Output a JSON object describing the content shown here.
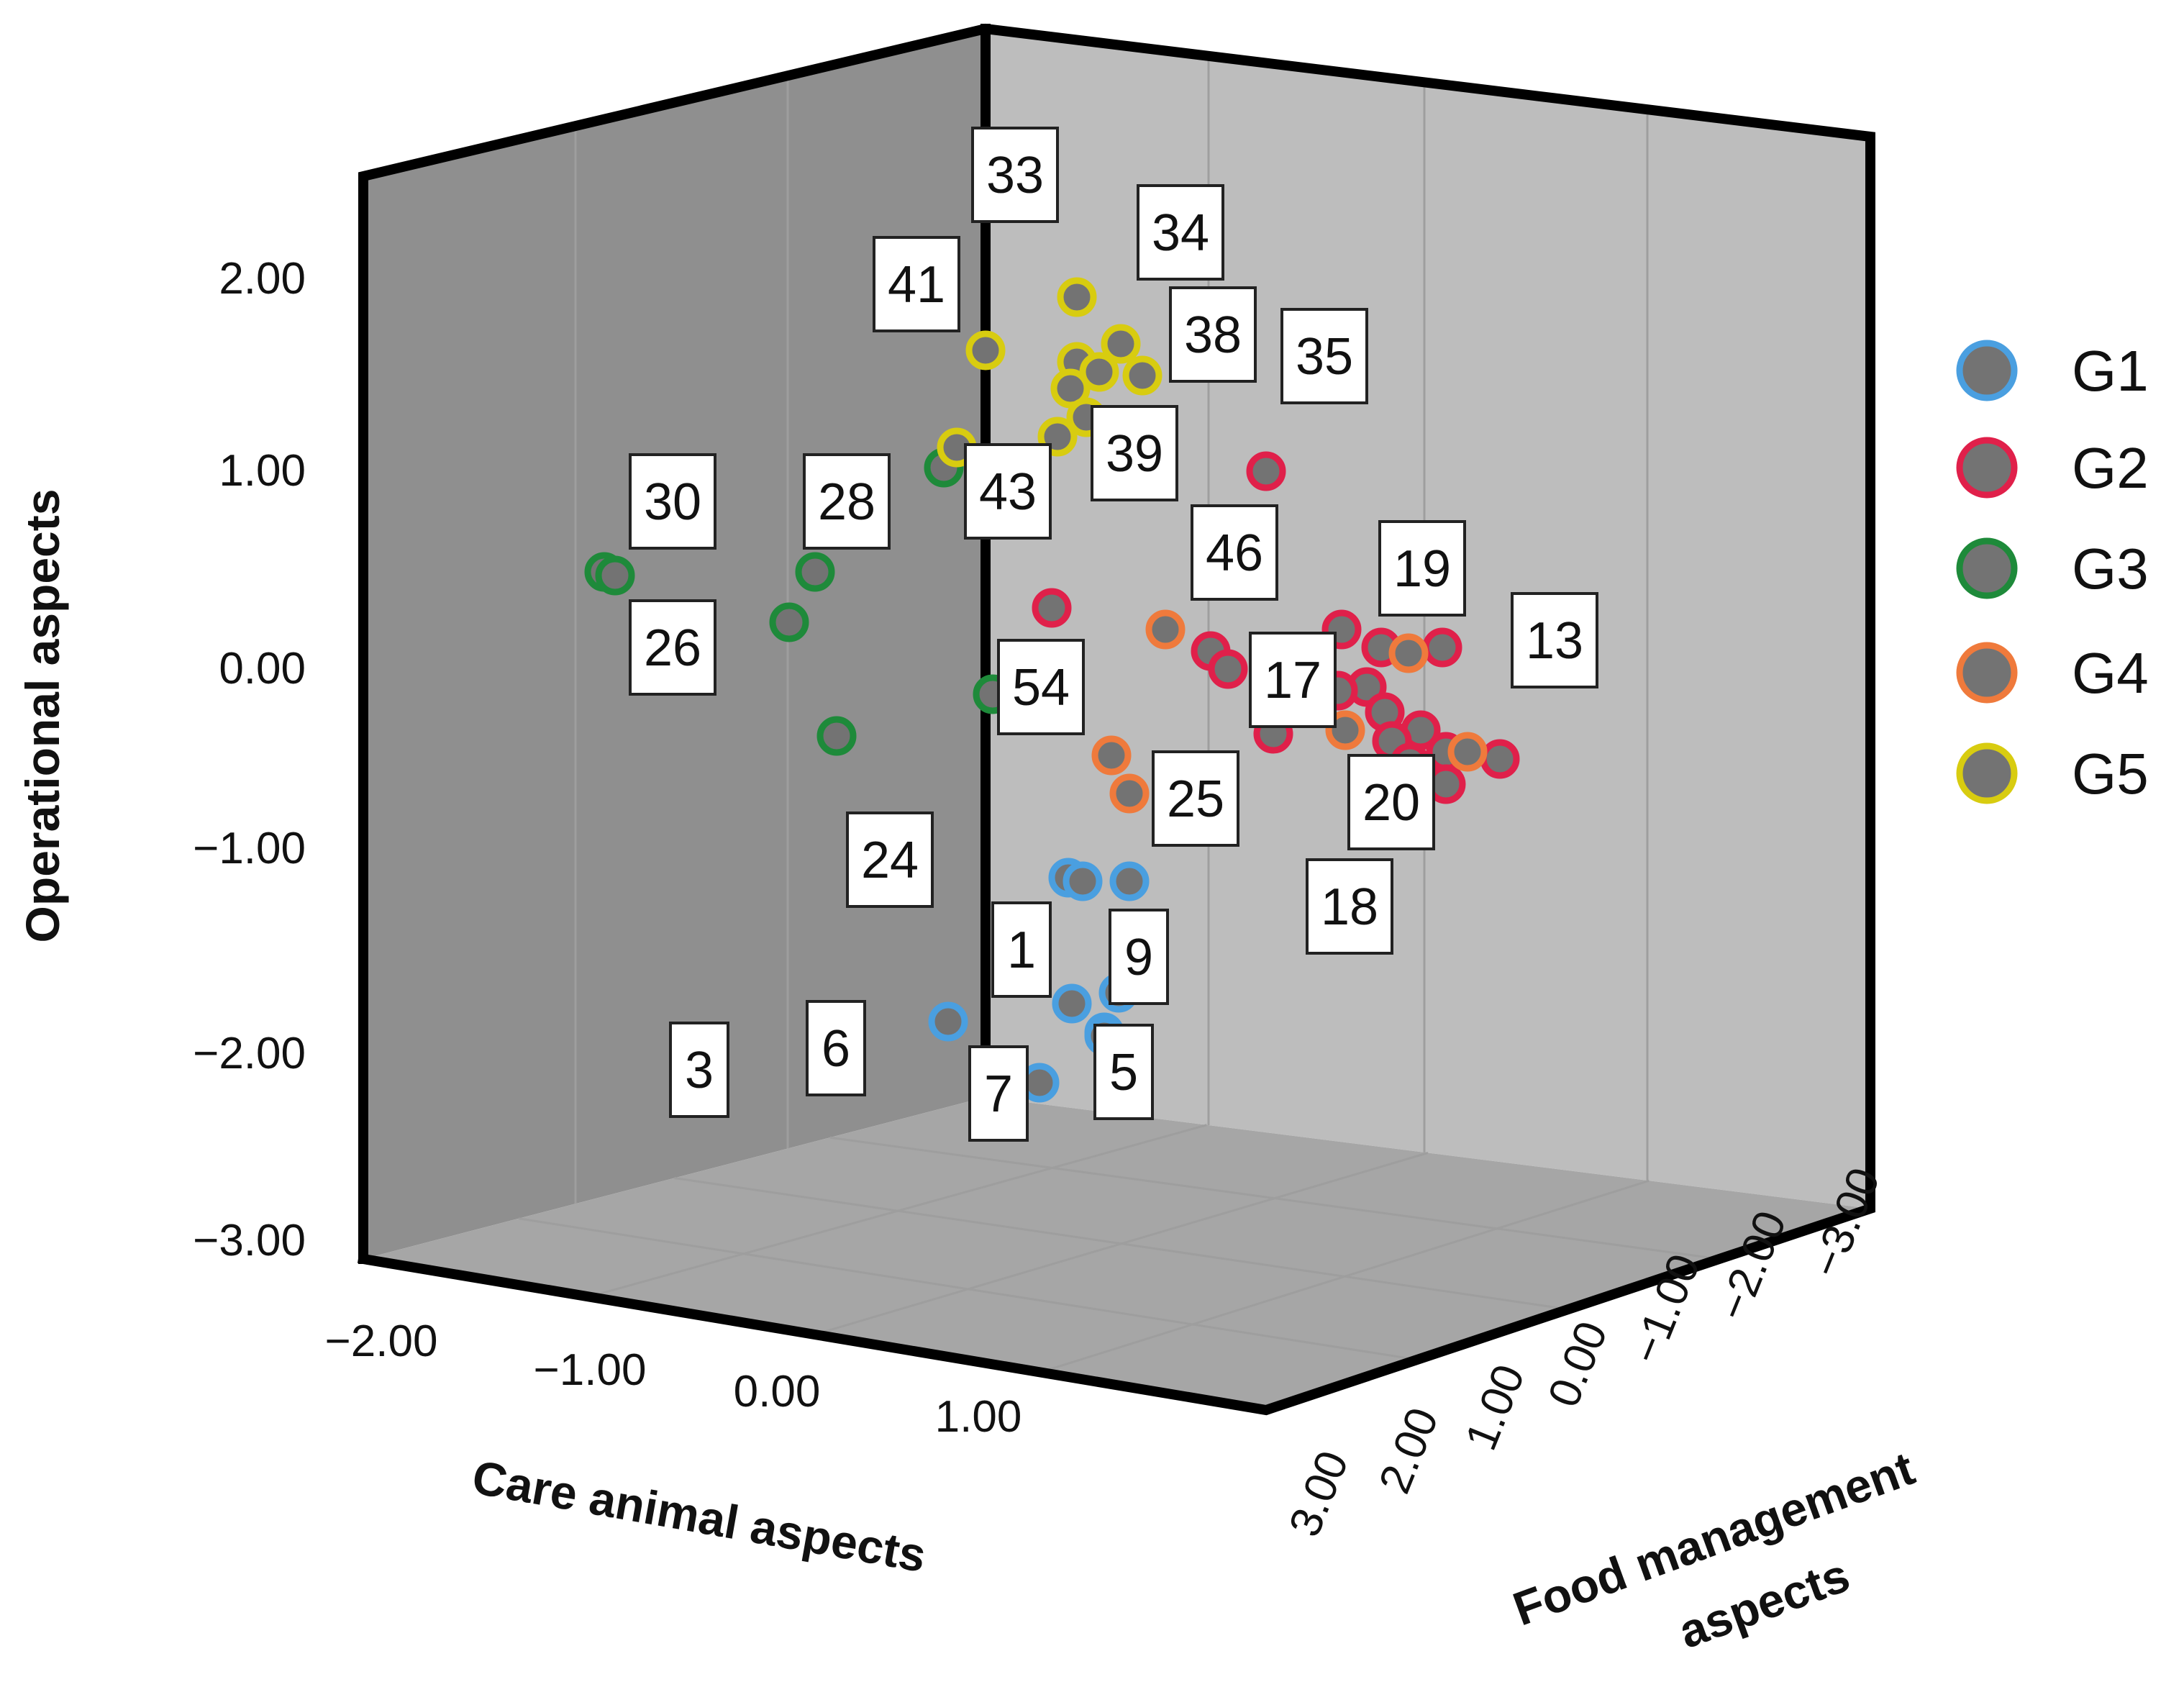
{
  "chart_data": {
    "type": "scatter",
    "title": "",
    "xlabel": "Care animal aspects",
    "ylabel": "Operational aspects",
    "zlabel": "Food management aspects",
    "y_ticks": [
      "2.00",
      "1.00",
      "0.00",
      "−1.00",
      "−2.00",
      "−3.00"
    ],
    "x_ticks": [
      "−2.00",
      "−1.00",
      "0.00",
      "1.00"
    ],
    "z_ticks": [
      "3.00",
      "2.00",
      "1.00",
      "0.00",
      "−1.00",
      "−2.00",
      "−3.00"
    ],
    "grid": true,
    "legend_position": "right",
    "series": [
      {
        "name": "G1",
        "color": "#4a9fe0"
      },
      {
        "name": "G2",
        "color": "#e0204a"
      },
      {
        "name": "G3",
        "color": "#1e8a3a"
      },
      {
        "name": "G4",
        "color": "#ef7a3c"
      },
      {
        "name": "G5",
        "color": "#d8cc10"
      }
    ],
    "point_labels": [
      "33",
      "34",
      "41",
      "38",
      "35",
      "39",
      "43",
      "30",
      "28",
      "46",
      "19",
      "26",
      "13",
      "54",
      "17",
      "25",
      "20",
      "24",
      "18",
      "1",
      "9",
      "3",
      "6",
      "5",
      "7"
    ],
    "points": [
      {
        "group": "G1",
        "op": -1.05
      },
      {
        "group": "G1",
        "op": -1.08
      },
      {
        "group": "G1",
        "op": -1.08
      },
      {
        "group": "G1",
        "op": -1.74
      },
      {
        "group": "G1",
        "op": -1.68
      },
      {
        "group": "G1",
        "op": -1.7
      },
      {
        "group": "G1",
        "op": -1.85
      },
      {
        "group": "G1",
        "op": -1.88
      },
      {
        "group": "G1",
        "op": -2.1
      },
      {
        "group": "G2",
        "op": 1.05
      },
      {
        "group": "G2",
        "op": 0.3
      },
      {
        "group": "G2",
        "op": 0.25
      },
      {
        "group": "G2",
        "op": 0.1
      },
      {
        "group": "G2",
        "op": 0.03
      },
      {
        "group": "G2",
        "op": 0.15
      },
      {
        "group": "G2",
        "op": 0.2
      },
      {
        "group": "G2",
        "op": -0.05
      },
      {
        "group": "G2",
        "op": -0.1
      },
      {
        "group": "G2",
        "op": -0.25
      },
      {
        "group": "G2",
        "op": -0.3
      },
      {
        "group": "G2",
        "op": -0.4
      },
      {
        "group": "G2",
        "op": -0.45
      },
      {
        "group": "G2",
        "op": -0.55
      },
      {
        "group": "G2",
        "op": -0.5
      },
      {
        "group": "G2",
        "op": -0.4
      },
      {
        "group": "G2",
        "op": 0.15
      },
      {
        "group": "G3",
        "op": 0.5
      },
      {
        "group": "G3",
        "op": 0.5
      },
      {
        "group": "G3",
        "op": 0.5
      },
      {
        "group": "G3",
        "op": 0.25
      },
      {
        "group": "G3",
        "op": -0.3
      },
      {
        "group": "G3",
        "op": 1.05
      },
      {
        "group": "G3",
        "op": -0.05
      },
      {
        "group": "G4",
        "op": 0.25
      },
      {
        "group": "G4",
        "op": -0.4
      },
      {
        "group": "G4",
        "op": -0.6
      },
      {
        "group": "G4",
        "op": 0.15
      },
      {
        "group": "G4",
        "op": -0.25
      },
      {
        "group": "G4",
        "op": -0.4
      },
      {
        "group": "G5",
        "op": 1.95
      },
      {
        "group": "G5",
        "op": 1.7
      },
      {
        "group": "G5",
        "op": 1.7
      },
      {
        "group": "G5",
        "op": 1.6
      },
      {
        "group": "G5",
        "op": 1.55
      },
      {
        "group": "G5",
        "op": 1.55
      },
      {
        "group": "G5",
        "op": 1.45
      },
      {
        "group": "G5",
        "op": 1.35
      },
      {
        "group": "G5",
        "op": 1.25
      },
      {
        "group": "G5",
        "op": 1.15
      }
    ]
  }
}
